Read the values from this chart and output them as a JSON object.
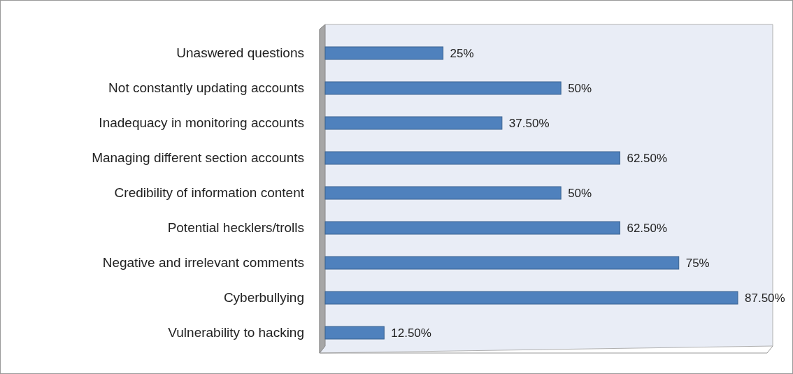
{
  "chart_data": {
    "type": "bar",
    "orientation": "horizontal",
    "color": "#4f81bd",
    "categories": [
      "Unaswered questions",
      "Not constantly updating accounts",
      "Inadequacy in monitoring accounts",
      "Managing different section accounts",
      "Credibility of information content",
      "Potential hecklers/trolls",
      "Negative and irrelevant comments",
      "Cyberbullying",
      "Vulnerability to hacking"
    ],
    "values": [
      25,
      50,
      37.5,
      62.5,
      50,
      62.5,
      75,
      87.5,
      12.5
    ],
    "value_labels": [
      "25%",
      "50%",
      "37.50%",
      "62.50%",
      "50%",
      "62.50%",
      "75%",
      "87.50%",
      "12.50%"
    ]
  }
}
